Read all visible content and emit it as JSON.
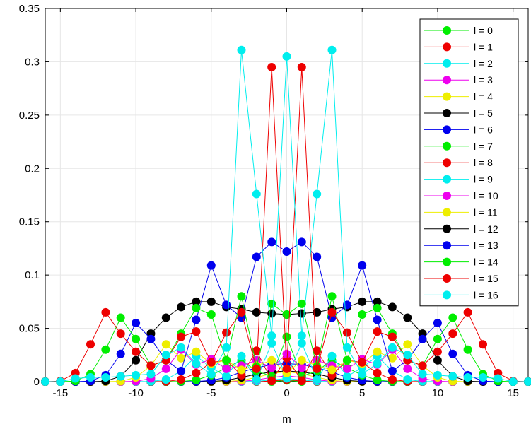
{
  "chart_data": {
    "type": "line",
    "title": "",
    "xlabel": "m",
    "ylabel": "",
    "xlim": [
      -16,
      16
    ],
    "ylim": [
      0,
      0.35
    ],
    "xticks": [
      -15,
      -10,
      -5,
      0,
      5,
      10,
      15
    ],
    "xtick_labels": [
      "-15",
      "-10",
      "-5",
      "0",
      "5",
      "10",
      "15"
    ],
    "yticks": [
      0,
      0.05,
      0.1,
      0.15,
      0.2,
      0.25,
      0.3,
      0.35
    ],
    "ytick_labels": [
      "0",
      "0.05",
      "0.1",
      "0.15",
      "0.2",
      "0.25",
      "0.3",
      "0.35"
    ],
    "grid": true,
    "legend_position": "top-right",
    "x": [
      -16,
      -15,
      -14,
      -13,
      -12,
      -11,
      -10,
      -9,
      -8,
      -7,
      -6,
      -5,
      -4,
      -3,
      -2,
      -1,
      0,
      1,
      2,
      3,
      4,
      5,
      6,
      7,
      8,
      9,
      10,
      11,
      12,
      13,
      14,
      15,
      16
    ],
    "series": [
      {
        "name": "l = 0",
        "color": "#00ee00",
        "values": [
          0,
          0,
          0,
          0,
          0,
          0,
          0,
          0,
          0,
          0,
          0,
          0,
          0,
          0,
          0,
          0,
          0.0012,
          0,
          0,
          0,
          0,
          0,
          0,
          0,
          0,
          0,
          0,
          0,
          0,
          0,
          0,
          0,
          0
        ]
      },
      {
        "name": "l = 1",
        "color": "#ee0000",
        "values": [
          0,
          0,
          0,
          0,
          0,
          0,
          0,
          0,
          0,
          0,
          0,
          0,
          0,
          0,
          0,
          0.0006,
          0.0018,
          0.0006,
          0,
          0,
          0,
          0,
          0,
          0,
          0,
          0,
          0,
          0,
          0,
          0,
          0,
          0,
          0
        ]
      },
      {
        "name": "l = 2",
        "color": "#00eeee",
        "values": [
          0,
          0,
          0,
          0,
          0,
          0,
          0,
          0,
          0,
          0,
          0,
          0,
          0,
          0,
          0.0003,
          0.0016,
          0.003,
          0.0016,
          0.0003,
          0,
          0,
          0,
          0,
          0,
          0,
          0,
          0,
          0,
          0,
          0,
          0,
          0,
          0
        ]
      },
      {
        "name": "l = 3",
        "color": "#ee00ee",
        "values": [
          0,
          0,
          0,
          0,
          0,
          0,
          0,
          0,
          0,
          0,
          0,
          0,
          0,
          0.0003,
          0.0016,
          0.004,
          0.0055,
          0.004,
          0.0016,
          0.0003,
          0,
          0,
          0,
          0,
          0,
          0,
          0,
          0,
          0,
          0,
          0,
          0,
          0
        ]
      },
      {
        "name": "l = 4",
        "color": "#eeee00",
        "values": [
          0,
          0,
          0,
          0,
          0,
          0,
          0,
          0,
          0,
          0,
          0,
          0,
          0.0002,
          0.0012,
          0.004,
          0.0075,
          0.0095,
          0.0075,
          0.004,
          0.0012,
          0.0002,
          0,
          0,
          0,
          0,
          0,
          0,
          0,
          0,
          0,
          0,
          0,
          0
        ]
      },
      {
        "name": "l = 5",
        "color": "#000000",
        "values": [
          0,
          0,
          0,
          0,
          0,
          0,
          0,
          0,
          0,
          0,
          0,
          0.0002,
          0.0012,
          0.004,
          0.007,
          0.009,
          0.01,
          0.009,
          0.007,
          0.004,
          0.0012,
          0.0002,
          0,
          0,
          0,
          0,
          0,
          0,
          0,
          0,
          0,
          0,
          0
        ]
      },
      {
        "name": "l = 6",
        "color": "#0000ee",
        "values": [
          0,
          0,
          0,
          0,
          0,
          0,
          0,
          0,
          0,
          0,
          0.0002,
          0.0012,
          0.004,
          0.009,
          0.013,
          0.016,
          0.017,
          0.016,
          0.013,
          0.009,
          0.004,
          0.0012,
          0.0002,
          0,
          0,
          0,
          0,
          0,
          0,
          0,
          0,
          0,
          0
        ]
      },
      {
        "name": "l = 7",
        "color": "#00ee00",
        "values": [
          0,
          0,
          0,
          0,
          0,
          0,
          0,
          0,
          0,
          0.0002,
          0.0015,
          0.006,
          0.013,
          0.02,
          0.01,
          0.005,
          0.042,
          0.005,
          0.01,
          0.02,
          0.013,
          0.006,
          0.0015,
          0.0002,
          0,
          0,
          0,
          0,
          0,
          0,
          0,
          0,
          0
        ]
      },
      {
        "name": "l = 8",
        "color": "#ee0000",
        "values": [
          0,
          0,
          0,
          0,
          0,
          0,
          0,
          0,
          0.0002,
          0.002,
          0.008,
          0.018,
          0.02,
          0.006,
          0.029,
          0.001,
          0.022,
          0.001,
          0.029,
          0.006,
          0.02,
          0.018,
          0.008,
          0.002,
          0.0002,
          0,
          0,
          0,
          0,
          0,
          0,
          0,
          0
        ]
      },
      {
        "name": "l = 9",
        "color": "#00eeee",
        "values": [
          0,
          0,
          0,
          0,
          0,
          0,
          0,
          0.0002,
          0.002,
          0.01,
          0.024,
          0.013,
          0.005,
          0.024,
          0.002,
          0.036,
          0.004,
          0.036,
          0.002,
          0.024,
          0.005,
          0.013,
          0.024,
          0.01,
          0.002,
          0.0002,
          0,
          0,
          0,
          0,
          0,
          0,
          0
        ]
      },
      {
        "name": "l = 10",
        "color": "#ee00ee",
        "values": [
          0,
          0,
          0,
          0,
          0,
          0,
          0.0003,
          0.003,
          0.012,
          0.03,
          0.016,
          0.021,
          0.012,
          0.015,
          0.02,
          0.013,
          0.026,
          0.013,
          0.02,
          0.015,
          0.012,
          0.021,
          0.016,
          0.03,
          0.012,
          0.003,
          0.0003,
          0,
          0,
          0,
          0,
          0,
          0
        ]
      },
      {
        "name": "l = 11",
        "color": "#eeee00",
        "values": [
          0,
          0,
          0,
          0,
          0,
          0.0003,
          0.004,
          0.015,
          0.035,
          0.022,
          0.028,
          0.017,
          0.02,
          0.011,
          0.015,
          0.02,
          0.008,
          0.02,
          0.015,
          0.011,
          0.02,
          0.017,
          0.028,
          0.022,
          0.035,
          0.015,
          0.004,
          0.0003,
          0,
          0,
          0,
          0,
          0
        ]
      },
      {
        "name": "l = 12",
        "color": "#000000",
        "values": [
          0,
          0,
          0,
          0,
          0.0004,
          0.005,
          0.02,
          0.045,
          0.06,
          0.07,
          0.075,
          0.075,
          0.07,
          0.068,
          0.065,
          0.064,
          0.063,
          0.064,
          0.065,
          0.068,
          0.07,
          0.075,
          0.075,
          0.07,
          0.06,
          0.045,
          0.02,
          0.005,
          0.0004,
          0,
          0,
          0,
          0
        ]
      },
      {
        "name": "l = 13",
        "color": "#0000ee",
        "values": [
          0,
          0,
          0,
          0.0005,
          0.006,
          0.026,
          0.055,
          0.04,
          0.02,
          0.01,
          0.058,
          0.109,
          0.072,
          0.06,
          0.117,
          0.131,
          0.122,
          0.131,
          0.117,
          0.06,
          0.072,
          0.109,
          0.058,
          0.01,
          0.02,
          0.04,
          0.055,
          0.026,
          0.006,
          0.0005,
          0,
          0,
          0
        ]
      },
      {
        "name": "l = 14",
        "color": "#00ee00",
        "values": [
          0,
          0,
          0.0005,
          0.007,
          0.03,
          0.06,
          0.04,
          0.015,
          0.02,
          0.045,
          0.069,
          0.063,
          0.02,
          0.08,
          0.014,
          0.073,
          0.063,
          0.073,
          0.014,
          0.08,
          0.02,
          0.063,
          0.069,
          0.045,
          0.02,
          0.015,
          0.04,
          0.06,
          0.03,
          0.007,
          0.0005,
          0,
          0
        ]
      },
      {
        "name": "l = 15",
        "color": "#ee0000",
        "values": [
          0,
          0.0005,
          0.008,
          0.035,
          0.065,
          0.045,
          0.028,
          0.015,
          0.02,
          0.042,
          0.047,
          0.018,
          0.046,
          0.065,
          0.012,
          0.295,
          0.012,
          0.295,
          0.012,
          0.065,
          0.046,
          0.018,
          0.047,
          0.042,
          0.02,
          0.015,
          0.028,
          0.045,
          0.065,
          0.035,
          0.008,
          0.0005,
          0
        ]
      },
      {
        "name": "l = 16",
        "color": "#00eeee",
        "values": [
          0,
          0,
          0.003,
          0.004,
          0.004,
          0.005,
          0.006,
          0.007,
          0.025,
          0.032,
          0.017,
          0.007,
          0.032,
          0.311,
          0.176,
          0.043,
          0.305,
          0.043,
          0.176,
          0.311,
          0.032,
          0.007,
          0.017,
          0.032,
          0.025,
          0.007,
          0.006,
          0.005,
          0.004,
          0.004,
          0.003,
          0,
          0
        ]
      }
    ]
  }
}
